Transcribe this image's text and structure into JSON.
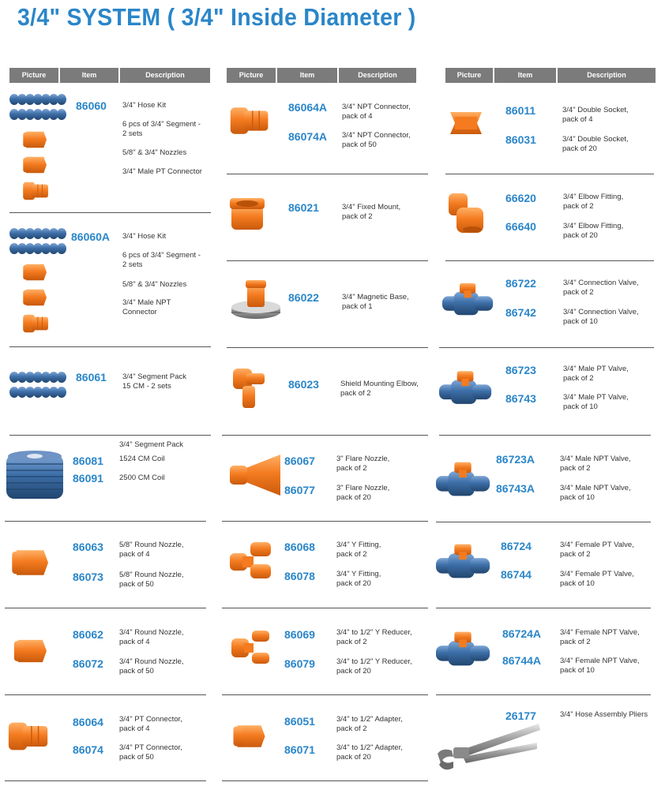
{
  "title": "3/4\" SYSTEM ( 3/4\" Inside Diameter )",
  "headers": [
    "Picture",
    "Item",
    "Description"
  ],
  "colors": {
    "accent": "#2a86c9",
    "orange": "#f47b20",
    "blue": "#3d6fa8",
    "header_bg": "#7b7b7b"
  },
  "col1": [
    {
      "ids": [
        "86060"
      ],
      "descs": [
        "3/4\" Hose Kit",
        "6 pcs of 3/4\" Segment -\n2 sets",
        "5/8\" & 3/4\" Nozzles",
        "3/4\" Male PT Connector"
      ]
    },
    {
      "ids": [
        "86060A"
      ],
      "descs": [
        "3/4\" Hose Kit",
        "6 pcs of 3/4\" Segment -\n2 sets",
        "5/8\" & 3/4\" Nozzles",
        "3/4\" Male NPT\nConnector"
      ]
    },
    {
      "ids": [
        "86061"
      ],
      "descs": [
        "3/4\" Segment Pack\n15 CM - 2 sets"
      ]
    },
    {
      "ids": [
        "86081",
        "86091"
      ],
      "descs": [
        "3/4\" Segment Pack",
        "1524 CM Coil",
        "2500 CM Coil"
      ]
    },
    {
      "ids": [
        "86063",
        "86073"
      ],
      "descs": [
        "5/8\" Round Nozzle,\npack of 4",
        "5/8\" Round Nozzle,\npack of 50"
      ]
    },
    {
      "ids": [
        "86062",
        "86072"
      ],
      "descs": [
        "3/4\" Round Nozzle,\npack of 4",
        "3/4\" Round Nozzle,\npack of 50"
      ]
    },
    {
      "ids": [
        "86064",
        "86074"
      ],
      "descs": [
        "3/4\" PT Connector,\npack of 4",
        "3/4\" PT Connector,\npack of 50"
      ]
    }
  ],
  "col2": [
    {
      "ids": [
        "86064A",
        "86074A"
      ],
      "descs": [
        "3/4\" NPT Connector,\npack of 4",
        "3/4\" NPT Connector,\npack of 50"
      ]
    },
    {
      "ids": [
        "86021"
      ],
      "descs": [
        "3/4\" Fixed Mount,\npack of 2"
      ]
    },
    {
      "ids": [
        "86022"
      ],
      "descs": [
        "3/4\" Magnetic Base,\npack of 1"
      ]
    },
    {
      "ids": [
        "86023"
      ],
      "descs": [
        "Shield Mounting Elbow,\npack of 2"
      ]
    },
    {
      "ids": [
        "86067",
        "86077"
      ],
      "descs": [
        "3\" Flare Nozzle,\npack of 2",
        "3\" Flare Nozzle,\npack of 20"
      ]
    },
    {
      "ids": [
        "86068",
        "86078"
      ],
      "descs": [
        "3/4\" Y Fitting,\npack of 2",
        "3/4\" Y Fitting,\npack of 20"
      ]
    },
    {
      "ids": [
        "86069",
        "86079"
      ],
      "descs": [
        "3/4\" to 1/2\" Y Reducer,\npack of 2",
        "3/4\" to 1/2\" Y Reducer,\npack of 20"
      ]
    },
    {
      "ids": [
        "86051",
        "86071"
      ],
      "descs": [
        "3/4\" to 1/2\" Adapter,\npack of 2",
        "3/4\" to 1/2\" Adapter,\npack of 20"
      ]
    }
  ],
  "col3": [
    {
      "ids": [
        "86011",
        "86031"
      ],
      "descs": [
        "3/4\" Double Socket,\npack of 4",
        "3/4\" Double Socket,\npack of 20"
      ]
    },
    {
      "ids": [
        "66620",
        "66640"
      ],
      "descs": [
        "3/4\" Elbow Fitting,\npack of 2",
        "3/4\" Elbow Fitting,\npack of 20"
      ]
    },
    {
      "ids": [
        "86722",
        "86742"
      ],
      "descs": [
        "3/4\" Connection Valve,\npack of 2",
        "3/4\" Connection Valve,\npack of 10"
      ]
    },
    {
      "ids": [
        "86723",
        "86743"
      ],
      "descs": [
        "3/4\" Male PT Valve,\npack of 2",
        "3/4\" Male PT Valve,\npack of 10"
      ]
    },
    {
      "ids": [
        "86723A",
        "86743A"
      ],
      "descs": [
        "3/4\" Male NPT Valve,\npack of 2",
        "3/4\" Male NPT Valve,\npack of 10"
      ]
    },
    {
      "ids": [
        "86724",
        "86744"
      ],
      "descs": [
        "3/4\" Female PT Valve,\npack of 2",
        "3/4\" Female PT Valve,\npack of 10"
      ]
    },
    {
      "ids": [
        "86724A",
        "86744A"
      ],
      "descs": [
        "3/4\" Female NPT Valve,\npack of 2",
        "3/4\" Female NPT Valve,\npack of 10"
      ]
    },
    {
      "ids": [
        "26177"
      ],
      "descs": [
        "3/4\" Hose Assembly Pliers"
      ]
    }
  ]
}
